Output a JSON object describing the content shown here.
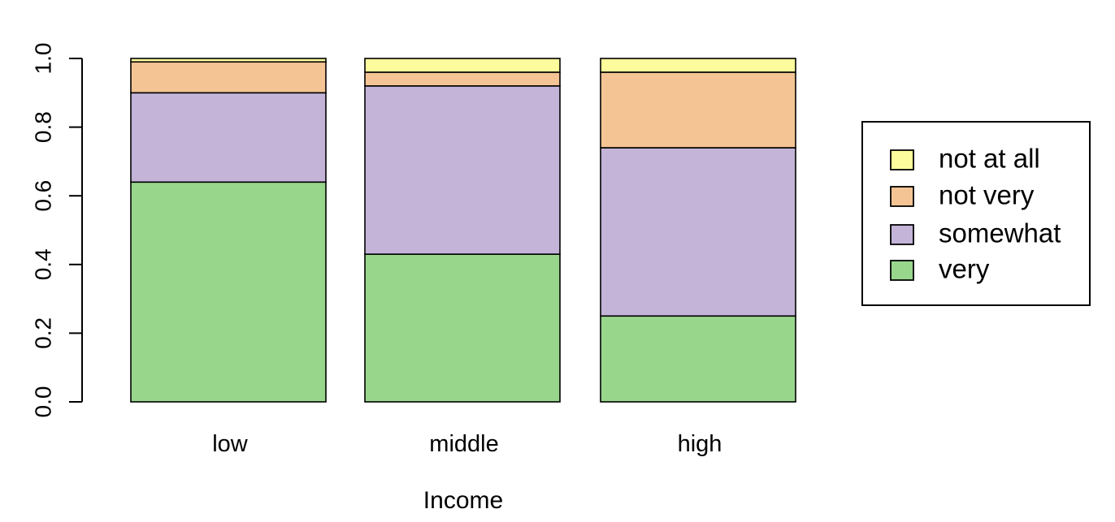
{
  "chart_data": {
    "type": "bar",
    "stacked": true,
    "categories": [
      "low",
      "middle",
      "high"
    ],
    "series": [
      {
        "name": "very",
        "values": [
          0.64,
          0.43,
          0.25
        ],
        "color": "#98d68c"
      },
      {
        "name": "somewhat",
        "values": [
          0.26,
          0.49,
          0.49
        ],
        "color": "#c4b4d8"
      },
      {
        "name": "not very",
        "values": [
          0.09,
          0.04,
          0.22
        ],
        "color": "#f4c494"
      },
      {
        "name": "not at all",
        "values": [
          0.01,
          0.04,
          0.04
        ],
        "color": "#fcfc9c"
      }
    ],
    "title": "",
    "xlabel": "Income",
    "ylabel": "",
    "ylim": [
      0,
      1
    ],
    "yticks": [
      "0.0",
      "0.2",
      "0.4",
      "0.6",
      "0.8",
      "1.0"
    ],
    "legend": {
      "placement": "right",
      "entries": [
        "not at all",
        "not very",
        "somewhat",
        "very"
      ]
    },
    "grid": false
  }
}
